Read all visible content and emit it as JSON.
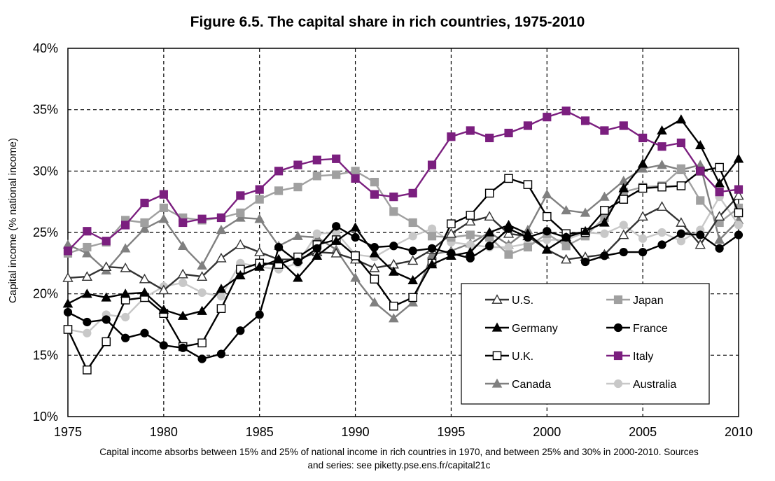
{
  "chart_data": {
    "type": "line",
    "title": "Figure 6.5. The capital share in rich countries, 1975-2010",
    "ylabel": "Capital income (% national income)",
    "xlabel": "",
    "caption": "Capital income absorbs between 15% and 25% of national income in rich countries in 1970, and between 25% and 30% in 2000-2010. Sources and series: see piketty.pse.ens.fr/capital21c",
    "xlim": [
      1975,
      2010
    ],
    "ylim": [
      0.1,
      0.4
    ],
    "x_ticks": [
      "1975",
      "1980",
      "1985",
      "1990",
      "1995",
      "2000",
      "2005",
      "2010"
    ],
    "y_ticks": [
      "10%",
      "15%",
      "20%",
      "25%",
      "30%",
      "35%",
      "40%"
    ],
    "grid": "dashed",
    "legend_position": "inside lower-right",
    "x": [
      1975,
      1976,
      1977,
      1978,
      1979,
      1980,
      1981,
      1982,
      1983,
      1984,
      1985,
      1986,
      1987,
      1988,
      1989,
      1990,
      1991,
      1992,
      1993,
      1994,
      1995,
      1996,
      1997,
      1998,
      1999,
      2000,
      2001,
      2002,
      2003,
      2004,
      2005,
      2006,
      2007,
      2008,
      2009,
      2010
    ],
    "series": [
      {
        "name": "U.S.",
        "color": "#333333",
        "marker": "triangle-open",
        "values": [
          0.213,
          0.214,
          0.222,
          0.221,
          0.212,
          0.203,
          0.216,
          0.214,
          0.229,
          0.24,
          0.234,
          0.228,
          0.228,
          0.234,
          0.233,
          0.228,
          0.221,
          0.224,
          0.227,
          0.236,
          0.249,
          0.259,
          0.263,
          0.249,
          0.247,
          0.236,
          0.228,
          0.23,
          0.232,
          0.248,
          0.263,
          0.271,
          0.258,
          0.24,
          0.263,
          0.28
        ]
      },
      {
        "name": "Japan",
        "color": "#a0a0a0",
        "marker": "square",
        "values": [
          0.233,
          0.238,
          0.242,
          0.26,
          0.258,
          0.27,
          0.262,
          0.26,
          0.262,
          0.266,
          0.277,
          0.284,
          0.287,
          0.296,
          0.297,
          0.3,
          0.291,
          0.267,
          0.258,
          0.247,
          0.246,
          0.248,
          0.246,
          0.232,
          0.238,
          0.249,
          0.239,
          0.247,
          0.262,
          0.283,
          0.287,
          0.288,
          0.302,
          0.276,
          0.258,
          0.27
        ]
      },
      {
        "name": "Germany",
        "color": "#000000",
        "marker": "triangle",
        "values": [
          0.192,
          0.2,
          0.197,
          0.2,
          0.201,
          0.187,
          0.182,
          0.186,
          0.204,
          0.215,
          0.222,
          0.228,
          0.213,
          0.231,
          0.243,
          0.254,
          0.233,
          0.218,
          0.211,
          0.224,
          0.231,
          0.234,
          0.25,
          0.256,
          0.249,
          0.236,
          0.246,
          0.251,
          0.258,
          0.286,
          0.306,
          0.333,
          0.342,
          0.321,
          0.29,
          0.31
        ]
      },
      {
        "name": "France",
        "color": "#000000",
        "marker": "circle",
        "values": [
          0.185,
          0.177,
          0.179,
          0.164,
          0.168,
          0.158,
          0.156,
          0.147,
          0.151,
          0.17,
          0.183,
          0.238,
          0.226,
          0.237,
          0.255,
          0.246,
          0.238,
          0.239,
          0.235,
          0.237,
          0.233,
          0.229,
          0.239,
          0.253,
          0.246,
          0.251,
          0.246,
          0.226,
          0.231,
          0.234,
          0.234,
          0.24,
          0.249,
          0.248,
          0.237,
          0.248
        ]
      },
      {
        "name": "U.K.",
        "color": "#000000",
        "marker": "square-open",
        "values": [
          0.171,
          0.138,
          0.161,
          0.195,
          0.197,
          0.184,
          0.157,
          0.16,
          0.188,
          0.22,
          0.225,
          0.224,
          0.23,
          0.24,
          0.244,
          0.231,
          0.212,
          0.19,
          0.197,
          0.225,
          0.257,
          0.264,
          0.282,
          0.294,
          0.289,
          0.263,
          0.249,
          0.25,
          0.268,
          0.277,
          0.286,
          0.287,
          0.288,
          0.3,
          0.303,
          0.266
        ]
      },
      {
        "name": "Italy",
        "color": "#7b1f7f",
        "marker": "square",
        "values": [
          0.235,
          0.251,
          0.243,
          0.256,
          0.274,
          0.281,
          0.258,
          0.261,
          0.262,
          0.28,
          0.285,
          0.3,
          0.305,
          0.309,
          0.31,
          0.294,
          0.281,
          0.279,
          0.282,
          0.305,
          0.328,
          0.333,
          0.327,
          0.331,
          0.337,
          0.344,
          0.349,
          0.341,
          0.333,
          0.337,
          0.327,
          0.32,
          0.323,
          0.3,
          0.283,
          0.285
        ]
      },
      {
        "name": "Canada",
        "color": "#808080",
        "marker": "triangle",
        "values": [
          0.24,
          0.233,
          0.219,
          0.237,
          0.253,
          0.261,
          0.239,
          0.223,
          0.252,
          0.262,
          0.261,
          0.239,
          0.247,
          0.246,
          0.236,
          0.213,
          0.193,
          0.18,
          0.193,
          0.232,
          0.235,
          0.241,
          0.25,
          0.24,
          0.252,
          0.281,
          0.268,
          0.266,
          0.279,
          0.292,
          0.302,
          0.305,
          0.301,
          0.305,
          0.244,
          0.26
        ]
      },
      {
        "name": "Australia",
        "color": "#c8c8c8",
        "marker": "circle",
        "values": [
          0.171,
          0.168,
          0.183,
          0.181,
          0.197,
          0.206,
          0.209,
          0.201,
          0.198,
          0.225,
          0.222,
          0.22,
          0.225,
          0.249,
          0.25,
          0.232,
          0.23,
          0.239,
          0.247,
          0.253,
          0.242,
          0.24,
          0.238,
          0.238,
          0.241,
          0.244,
          0.244,
          0.25,
          0.249,
          0.256,
          0.245,
          0.25,
          0.243,
          0.252,
          0.279,
          0.256
        ]
      }
    ]
  }
}
